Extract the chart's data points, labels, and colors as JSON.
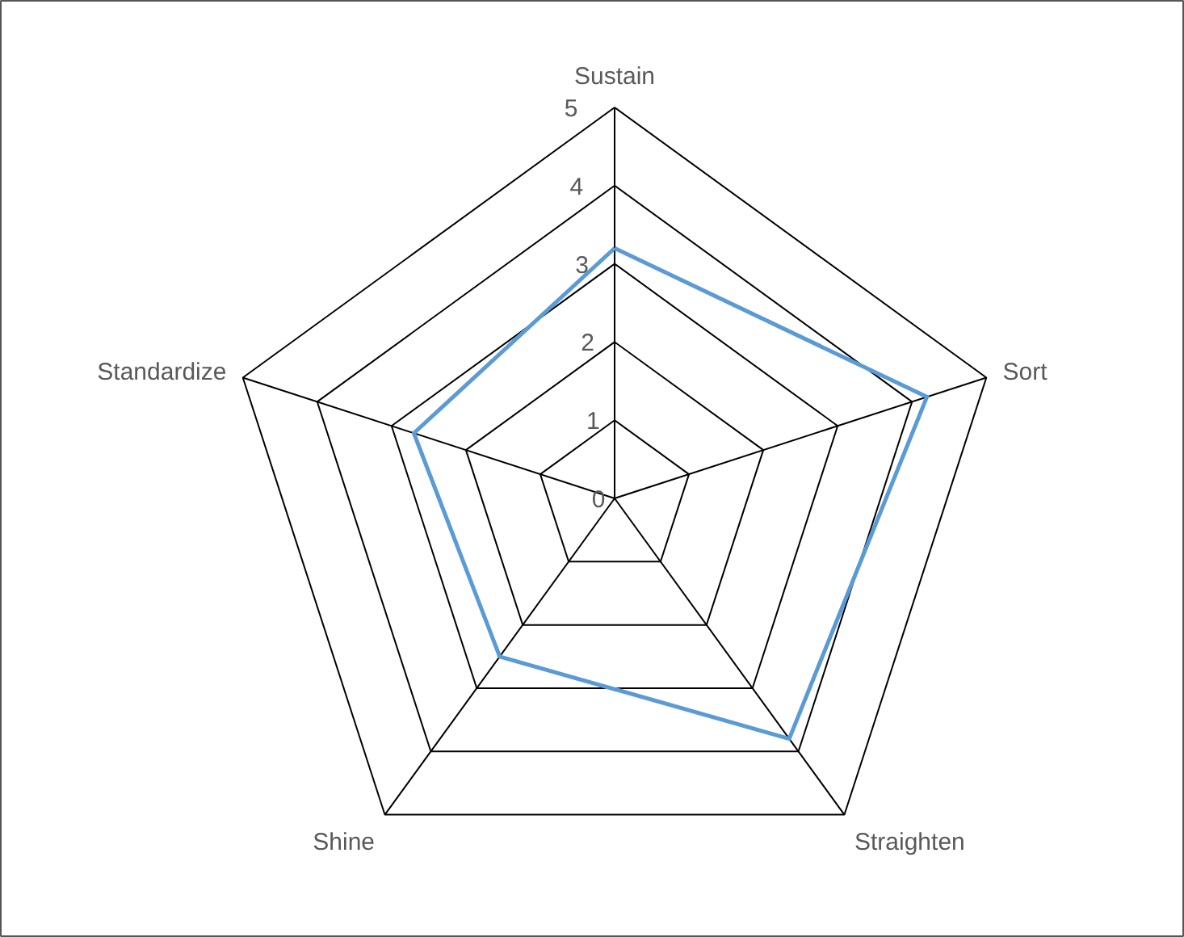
{
  "chart_data": {
    "type": "radar",
    "categories": [
      "Sustain",
      "Sort",
      "Straighten",
      "Shine",
      "Standardize"
    ],
    "series": [
      {
        "color": "#5b9bd5",
        "values": [
          3.2,
          4.2,
          3.8,
          2.5,
          2.7
        ]
      }
    ],
    "ylim": [
      0,
      5
    ],
    "yticks": [
      0,
      1,
      2,
      3,
      4,
      5
    ],
    "grid": true
  }
}
